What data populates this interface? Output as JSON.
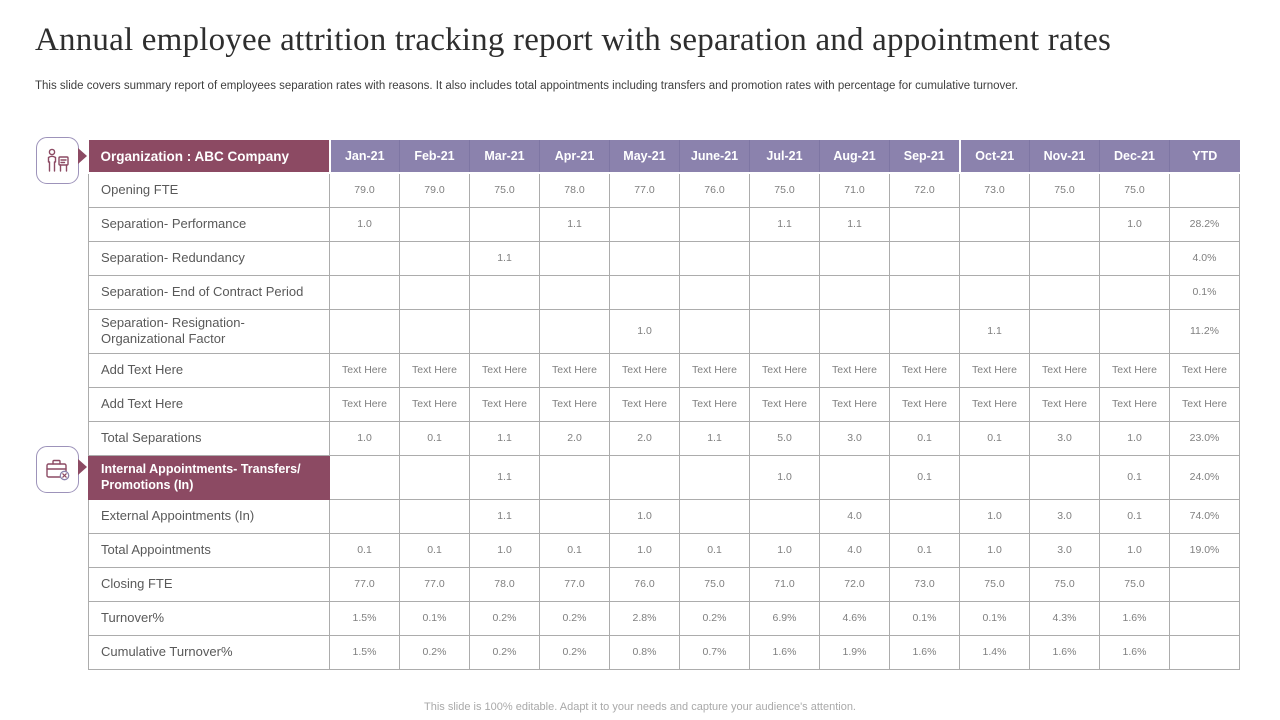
{
  "slide": {
    "title": "Annual employee attrition tracking report with separation and appointment rates",
    "subtitle": "This slide covers summary report of employees separation rates with reasons. It also includes total appointments including transfers and promotion rates with percentage for cumulative turnover.",
    "footer": "This slide is 100% editable. Adapt it to your needs and capture your audience's attention."
  },
  "colors": {
    "section_header": "#8C4A63",
    "month_header": "#8B82AD",
    "cell_border": "#ACACAC",
    "label_text": "#595959",
    "value_text": "#7F7F7F"
  },
  "icons": [
    {
      "name": "attrition-person-icon"
    },
    {
      "name": "briefcase-appointments-icon"
    }
  ],
  "table": {
    "org_header": "Organization : ABC Company",
    "columns": [
      "Jan-21",
      "Feb-21",
      "Mar-21",
      "Apr-21",
      "May-21",
      "June-21",
      "Jul-21",
      "Aug-21",
      "Sep-21",
      "Oct-21",
      "Nov-21",
      "Dec-21",
      "YTD"
    ],
    "rows": [
      {
        "label": "Opening FTE",
        "section": false,
        "values": [
          "79.0",
          "79.0",
          "75.0",
          "78.0",
          "77.0",
          "76.0",
          "75.0",
          "71.0",
          "72.0",
          "73.0",
          "75.0",
          "75.0",
          ""
        ]
      },
      {
        "label": "Separation- Performance",
        "section": false,
        "values": [
          "1.0",
          "",
          "",
          "1.1",
          "",
          "",
          "1.1",
          "1.1",
          "",
          "",
          "",
          "1.0",
          "28.2%"
        ]
      },
      {
        "label": "Separation- Redundancy",
        "section": false,
        "values": [
          "",
          "",
          "1.1",
          "",
          "",
          "",
          "",
          "",
          "",
          "",
          "",
          "",
          "4.0%"
        ]
      },
      {
        "label": "Separation- End of Contract Period",
        "section": false,
        "values": [
          "",
          "",
          "",
          "",
          "",
          "",
          "",
          "",
          "",
          "",
          "",
          "",
          "0.1%"
        ]
      },
      {
        "label": "Separation- Resignation- Organizational Factor",
        "section": false,
        "values": [
          "",
          "",
          "",
          "",
          "1.0",
          "",
          "",
          "",
          "",
          "1.1",
          "",
          "",
          "11.2%"
        ]
      },
      {
        "label": "Add Text Here",
        "section": false,
        "values": [
          "Text Here",
          "Text Here",
          "Text Here",
          "Text Here",
          "Text Here",
          "Text Here",
          "Text Here",
          "Text Here",
          "Text Here",
          "Text Here",
          "Text Here",
          "Text Here",
          "Text Here"
        ]
      },
      {
        "label": "Add Text Here",
        "section": false,
        "values": [
          "Text Here",
          "Text Here",
          "Text Here",
          "Text Here",
          "Text Here",
          "Text Here",
          "Text Here",
          "Text Here",
          "Text Here",
          "Text Here",
          "Text Here",
          "Text Here",
          "Text Here"
        ]
      },
      {
        "label": "Total Separations",
        "section": false,
        "values": [
          "1.0",
          "0.1",
          "1.1",
          "2.0",
          "2.0",
          "1.1",
          "5.0",
          "3.0",
          "0.1",
          "0.1",
          "3.0",
          "1.0",
          "23.0%"
        ]
      },
      {
        "label": "Internal Appointments- Transfers/ Promotions (In)",
        "section": true,
        "values": [
          "",
          "",
          "1.1",
          "",
          "",
          "",
          "1.0",
          "",
          "0.1",
          "",
          "",
          "0.1",
          "24.0%"
        ]
      },
      {
        "label": "External Appointments (In)",
        "section": false,
        "values": [
          "",
          "",
          "1.1",
          "",
          "1.0",
          "",
          "",
          "4.0",
          "",
          "1.0",
          "3.0",
          "0.1",
          "74.0%"
        ]
      },
      {
        "label": "Total Appointments",
        "section": false,
        "values": [
          "0.1",
          "0.1",
          "1.0",
          "0.1",
          "1.0",
          "0.1",
          "1.0",
          "4.0",
          "0.1",
          "1.0",
          "3.0",
          "1.0",
          "19.0%"
        ]
      },
      {
        "label": "Closing FTE",
        "section": false,
        "values": [
          "77.0",
          "77.0",
          "78.0",
          "77.0",
          "76.0",
          "75.0",
          "71.0",
          "72.0",
          "73.0",
          "75.0",
          "75.0",
          "75.0",
          ""
        ]
      },
      {
        "label": "Turnover%",
        "section": false,
        "values": [
          "1.5%",
          "0.1%",
          "0.2%",
          "0.2%",
          "2.8%",
          "0.2%",
          "6.9%",
          "4.6%",
          "0.1%",
          "0.1%",
          "4.3%",
          "1.6%",
          ""
        ]
      },
      {
        "label": "Cumulative Turnover%",
        "section": false,
        "values": [
          "1.5%",
          "0.2%",
          "0.2%",
          "0.2%",
          "0.8%",
          "0.7%",
          "1.6%",
          "1.9%",
          "1.6%",
          "1.4%",
          "1.6%",
          "1.6%",
          ""
        ]
      }
    ]
  }
}
